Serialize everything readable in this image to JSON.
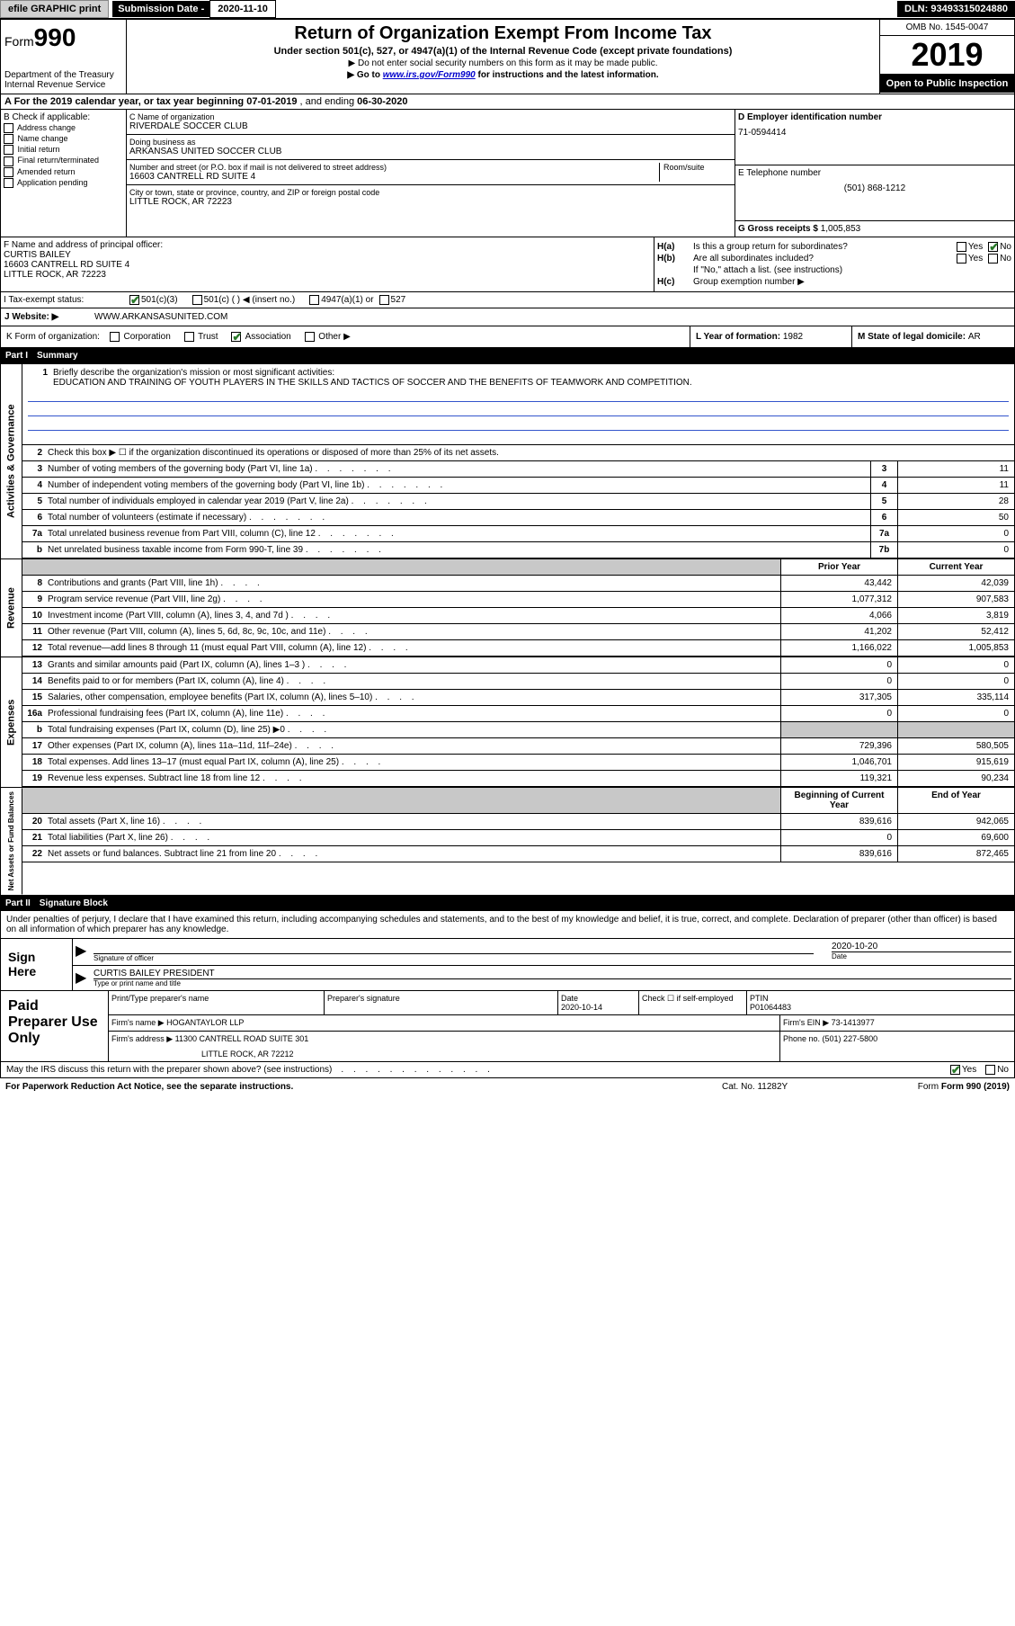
{
  "top": {
    "efile": "efile GRAPHIC print",
    "sub_label": "Submission Date - ",
    "sub_date": "2020-11-10",
    "dln": "DLN: 93493315024880"
  },
  "header": {
    "form": "Form",
    "form_no": "990",
    "title": "Return of Organization Exempt From Income Tax",
    "subtitle": "Under section 501(c), 527, or 4947(a)(1) of the Internal Revenue Code (except private foundations)",
    "instr1": "▶ Do not enter social security numbers on this form as it may be made public.",
    "instr2_pre": "▶ Go to ",
    "instr2_link": "www.irs.gov/Form990",
    "instr2_post": " for instructions and the latest information.",
    "dept": "Department of the Treasury\nInternal Revenue Service",
    "omb": "OMB No. 1545-0047",
    "year": "2019",
    "open": "Open to Public Inspection"
  },
  "period": {
    "label_a": "A For the 2019 calendar year, or tax year beginning ",
    "begin": "07-01-2019",
    "mid": "   , and ending ",
    "end": "06-30-2020"
  },
  "colB": {
    "label": "B Check if applicable:",
    "items": [
      "Address change",
      "Name change",
      "Initial return",
      "Final return/terminated",
      "Amended return",
      "Application pending"
    ]
  },
  "colC": {
    "name_label": "C Name of organization",
    "name": "RIVERDALE SOCCER CLUB",
    "dba_label": "Doing business as",
    "dba": "ARKANSAS UNITED SOCCER CLUB",
    "addr_label": "Number and street (or P.O. box if mail is not delivered to street address)",
    "room_label": "Room/suite",
    "addr": "16603 CANTRELL RD SUITE 4",
    "city_label": "City or town, state or province, country, and ZIP or foreign postal code",
    "city": "LITTLE ROCK, AR  72223"
  },
  "colD": {
    "label": "D Employer identification number",
    "ein": "71-0594414"
  },
  "colE": {
    "label": "E Telephone number",
    "phone": "(501) 868-1212"
  },
  "colG": {
    "label": "G Gross receipts $ ",
    "val": "1,005,853"
  },
  "colF": {
    "label": "F  Name and address of principal officer:",
    "name": "CURTIS BAILEY",
    "addr1": "16603 CANTRELL RD SUITE 4",
    "addr2": "LITTLE ROCK, AR  72223"
  },
  "colH": {
    "a_label": "H(a)",
    "a_text": "Is this a group return for subordinates?",
    "b_label": "H(b)",
    "b_text": "Are all subordinates included?",
    "ifno": "If \"No,\" attach a list. (see instructions)",
    "c_label": "H(c)",
    "c_text": "Group exemption number ▶",
    "yes": "Yes",
    "no": "No"
  },
  "status": {
    "label": "I    Tax-exempt status:",
    "o1": "501(c)(3)",
    "o2": "501(c) (   ) ◀ (insert no.)",
    "o3": "4947(a)(1) or",
    "o4": "527"
  },
  "website": {
    "label": "J   Website: ▶",
    "val": "WWW.ARKANSASUNITED.COM"
  },
  "rowK": {
    "label": "K Form of organization:",
    "o1": "Corporation",
    "o2": "Trust",
    "o3": "Association",
    "o4": "Other ▶"
  },
  "rowL": {
    "label": "L Year of formation: ",
    "val": "1982"
  },
  "rowM": {
    "label": "M State of legal domicile: ",
    "val": "AR"
  },
  "part1": {
    "num": "Part I",
    "title": "Summary"
  },
  "mission": {
    "num": "1",
    "label": "Briefly describe the organization's mission or most significant activities:",
    "text": "EDUCATION AND TRAINING OF YOUTH PLAYERS IN THE SKILLS AND TACTICS OF SOCCER AND THE BENEFITS OF TEAMWORK AND COMPETITION."
  },
  "line2": {
    "num": "2",
    "text": "Check this box ▶ ☐  if the organization discontinued its operations or disposed of more than 25% of its net assets."
  },
  "act_lines": [
    {
      "num": "3",
      "text": "Number of voting members of the governing body (Part VI, line 1a)",
      "box": "3",
      "val": "11"
    },
    {
      "num": "4",
      "text": "Number of independent voting members of the governing body (Part VI, line 1b)",
      "box": "4",
      "val": "11"
    },
    {
      "num": "5",
      "text": "Total number of individuals employed in calendar year 2019 (Part V, line 2a)",
      "box": "5",
      "val": "28"
    },
    {
      "num": "6",
      "text": "Total number of volunteers (estimate if necessary)",
      "box": "6",
      "val": "50"
    },
    {
      "num": "7a",
      "text": "Total unrelated business revenue from Part VIII, column (C), line 12",
      "box": "7a",
      "val": "0"
    },
    {
      "num": "b",
      "text": "Net unrelated business taxable income from Form 990-T, line 39",
      "box": "7b",
      "val": "0"
    }
  ],
  "col_headers": {
    "prior": "Prior Year",
    "current": "Current Year",
    "begin": "Beginning of Current Year",
    "end": "End of Year"
  },
  "rev_lines": [
    {
      "num": "8",
      "text": "Contributions and grants (Part VIII, line 1h)",
      "prior": "43,442",
      "curr": "42,039"
    },
    {
      "num": "9",
      "text": "Program service revenue (Part VIII, line 2g)",
      "prior": "1,077,312",
      "curr": "907,583"
    },
    {
      "num": "10",
      "text": "Investment income (Part VIII, column (A), lines 3, 4, and 7d )",
      "prior": "4,066",
      "curr": "3,819"
    },
    {
      "num": "11",
      "text": "Other revenue (Part VIII, column (A), lines 5, 6d, 8c, 9c, 10c, and 11e)",
      "prior": "41,202",
      "curr": "52,412"
    },
    {
      "num": "12",
      "text": "Total revenue—add lines 8 through 11 (must equal Part VIII, column (A), line 12)",
      "prior": "1,166,022",
      "curr": "1,005,853"
    }
  ],
  "exp_lines": [
    {
      "num": "13",
      "text": "Grants and similar amounts paid (Part IX, column (A), lines 1–3 )",
      "prior": "0",
      "curr": "0"
    },
    {
      "num": "14",
      "text": "Benefits paid to or for members (Part IX, column (A), line 4)",
      "prior": "0",
      "curr": "0"
    },
    {
      "num": "15",
      "text": "Salaries, other compensation, employee benefits (Part IX, column (A), lines 5–10)",
      "prior": "317,305",
      "curr": "335,114"
    },
    {
      "num": "16a",
      "text": "Professional fundraising fees (Part IX, column (A), line 11e)",
      "prior": "0",
      "curr": "0"
    },
    {
      "num": "b",
      "text": "Total fundraising expenses (Part IX, column (D), line 25) ▶0",
      "prior": "",
      "curr": "",
      "shaded": true
    },
    {
      "num": "17",
      "text": "Other expenses (Part IX, column (A), lines 11a–11d, 11f–24e)",
      "prior": "729,396",
      "curr": "580,505"
    },
    {
      "num": "18",
      "text": "Total expenses. Add lines 13–17 (must equal Part IX, column (A), line 25)",
      "prior": "1,046,701",
      "curr": "915,619"
    },
    {
      "num": "19",
      "text": "Revenue less expenses. Subtract line 18 from line 12",
      "prior": "119,321",
      "curr": "90,234"
    }
  ],
  "net_lines": [
    {
      "num": "20",
      "text": "Total assets (Part X, line 16)",
      "prior": "839,616",
      "curr": "942,065"
    },
    {
      "num": "21",
      "text": "Total liabilities (Part X, line 26)",
      "prior": "0",
      "curr": "69,600"
    },
    {
      "num": "22",
      "text": "Net assets or fund balances. Subtract line 21 from line 20",
      "prior": "839,616",
      "curr": "872,465"
    }
  ],
  "side_labels": {
    "act": "Activities & Governance",
    "rev": "Revenue",
    "exp": "Expenses",
    "net": "Net Assets or Fund Balances"
  },
  "part2": {
    "num": "Part II",
    "title": "Signature Block"
  },
  "sig": {
    "decl": "Under penalties of perjury, I declare that I have examined this return, including accompanying schedules and statements, and to the best of my knowledge and belief, it is true, correct, and complete. Declaration of preparer (other than officer) is based on all information of which preparer has any knowledge.",
    "sign_here": "Sign Here",
    "sig_officer": "Signature of officer",
    "date_label": "Date",
    "date": "2020-10-20",
    "name_title": "CURTIS BAILEY PRESIDENT",
    "type_label": "Type or print name and title"
  },
  "prep": {
    "label": "Paid Preparer Use Only",
    "h1": "Print/Type preparer's name",
    "h2": "Preparer's signature",
    "h3": "Date",
    "date": "2020-10-14",
    "h4": "Check ☐ if self-employed",
    "h5": "PTIN",
    "ptin": "P01064483",
    "firm_label": "Firm's name    ▶",
    "firm": "HOGANTAYLOR LLP",
    "ein_label": "Firm's EIN ▶",
    "ein": "73-1413977",
    "addr_label": "Firm's address ▶",
    "addr1": "11300 CANTRELL ROAD SUITE 301",
    "addr2": "LITTLE ROCK, AR  72212",
    "phone_label": "Phone no. ",
    "phone": "(501) 227-5800"
  },
  "bottom": {
    "q": "May the IRS discuss this return with the preparer shown above? (see instructions)",
    "yes": "Yes",
    "no": "No"
  },
  "footer": {
    "left": "For Paperwork Reduction Act Notice, see the separate instructions.",
    "mid": "Cat. No. 11282Y",
    "right": "Form 990 (2019)"
  }
}
